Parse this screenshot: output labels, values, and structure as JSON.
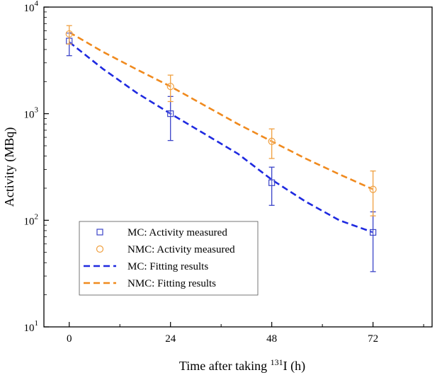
{
  "chart_data": {
    "type": "scatter",
    "title": "",
    "xlabel_prefix": "Time after taking ",
    "xlabel_sup": "131",
    "xlabel_suffix": "I (h)",
    "ylabel": "Activity (MBq)",
    "xlim": [
      -6,
      86
    ],
    "ylim": [
      10,
      10000
    ],
    "yscale": "log",
    "x_ticks": [
      0,
      24,
      48,
      72
    ],
    "x_tick_labels": [
      "0",
      "24",
      "48",
      "72"
    ],
    "y_ticks": [
      10,
      100,
      1000,
      10000
    ],
    "y_tick_base": [
      "10",
      "10",
      "10",
      "10"
    ],
    "y_tick_exp": [
      "1",
      "2",
      "3",
      "4"
    ],
    "legend_position": "bottom-left",
    "series": [
      {
        "name": "MC: Activity measured",
        "kind": "points",
        "marker": "square",
        "color": "#3b44c8",
        "x": [
          0,
          24,
          48,
          72
        ],
        "y": [
          4800,
          1000,
          225,
          77
        ],
        "err_low": [
          3500,
          560,
          138,
          33
        ],
        "err_high": [
          5700,
          1450,
          315,
          120
        ]
      },
      {
        "name": "NMC: Activity measured",
        "kind": "points",
        "marker": "circle",
        "color": "#f0a040",
        "x": [
          0,
          24,
          48,
          72
        ],
        "y": [
          5600,
          1800,
          550,
          195
        ],
        "err_low": [
          4500,
          1300,
          380,
          110
        ],
        "err_high": [
          6700,
          2300,
          720,
          290
        ]
      },
      {
        "name": "MC: Fitting results",
        "kind": "line",
        "dash": true,
        "color": "#1f2ae0",
        "x": [
          0,
          8,
          16,
          24,
          32,
          40,
          48,
          56,
          64,
          72
        ],
        "y": [
          4700,
          2630,
          1570,
          1000,
          650,
          420,
          240,
          150,
          100,
          77
        ]
      },
      {
        "name": "NMC: Fitting results",
        "kind": "line",
        "dash": true,
        "color": "#f08a1e",
        "x": [
          0,
          8,
          16,
          24,
          32,
          40,
          48,
          56,
          64,
          72
        ],
        "y": [
          5800,
          3800,
          2600,
          1800,
          1200,
          800,
          550,
          380,
          270,
          195
        ]
      }
    ]
  }
}
